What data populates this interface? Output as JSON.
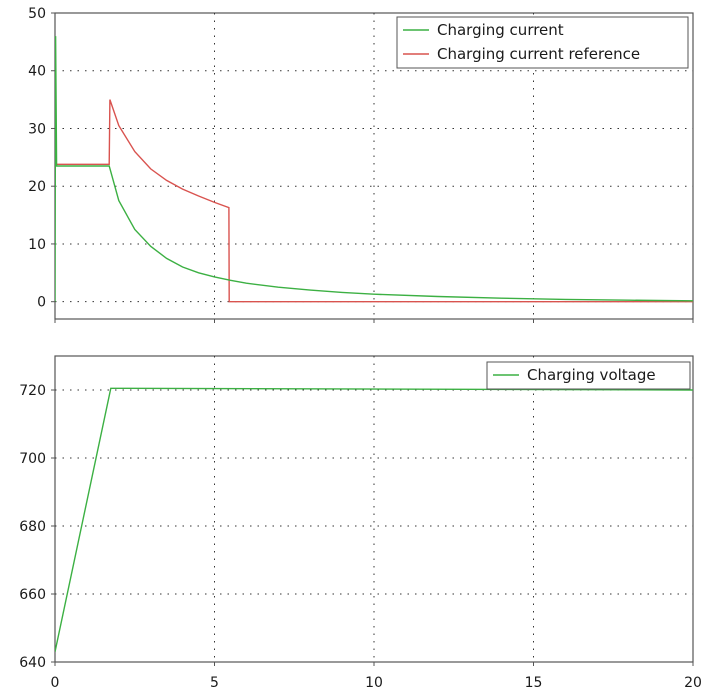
{
  "chart_data": [
    {
      "type": "line",
      "title": "",
      "xlabel": "",
      "ylabel": "",
      "xlim": [
        0,
        20
      ],
      "ylim": [
        -3,
        50
      ],
      "x_ticks": [
        0,
        5,
        10,
        15,
        20
      ],
      "y_ticks": [
        0,
        10,
        20,
        30,
        40,
        50
      ],
      "y_tick_labels": [
        "0",
        "10",
        "20",
        "30",
        "40",
        "50"
      ],
      "grid": "dotted",
      "legend_position": "top-right",
      "series": [
        {
          "name": "Charging current",
          "color": "#3cb043",
          "x": [
            0,
            0.02,
            0.05,
            1.7,
            2.0,
            2.5,
            3.0,
            3.5,
            4.0,
            4.5,
            5.0,
            5.5,
            6.0,
            7.0,
            8.0,
            9.0,
            10.0,
            12.0,
            14.0,
            16.0,
            18.0,
            20.0
          ],
          "y": [
            0,
            46,
            23.5,
            23.5,
            17.5,
            12.5,
            9.6,
            7.5,
            6.0,
            5.0,
            4.3,
            3.7,
            3.2,
            2.5,
            2.0,
            1.6,
            1.3,
            0.9,
            0.6,
            0.4,
            0.25,
            0.15
          ]
        },
        {
          "name": "Charging current reference",
          "color": "#d9534f",
          "x": [
            0.05,
            1.7,
            1.72,
            2.0,
            2.5,
            3.0,
            3.5,
            4.0,
            4.5,
            5.0,
            5.45,
            5.46,
            6.0,
            8.0,
            10.0,
            15.0,
            20.0
          ],
          "y": [
            23.8,
            23.8,
            35,
            30.5,
            26,
            23,
            21,
            19.5,
            18.3,
            17.2,
            16.3,
            0,
            0,
            0,
            0,
            0,
            0
          ]
        }
      ]
    },
    {
      "type": "line",
      "title": "",
      "xlabel": "",
      "ylabel": "",
      "xlim": [
        0,
        20
      ],
      "ylim": [
        640,
        730
      ],
      "x_ticks": [
        0,
        5,
        10,
        15,
        20
      ],
      "x_tick_labels": [
        "0",
        "5",
        "10",
        "15",
        "20"
      ],
      "y_ticks": [
        640,
        660,
        680,
        700,
        720
      ],
      "y_tick_labels": [
        "640",
        "660",
        "680",
        "700",
        "720"
      ],
      "grid": "dotted",
      "legend_position": "top-right",
      "series": [
        {
          "name": "Charging voltage",
          "color": "#3cb043",
          "x": [
            0,
            1.75,
            20
          ],
          "y": [
            643,
            720.5,
            720
          ]
        }
      ]
    }
  ]
}
